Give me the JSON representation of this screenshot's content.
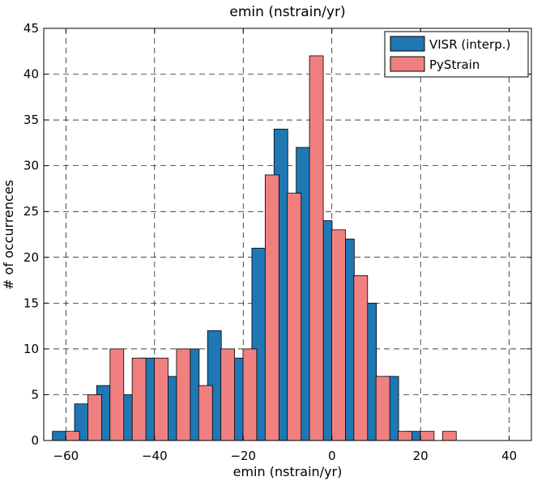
{
  "chart_data": {
    "type": "bar",
    "title": "emin (nstrain/yr)",
    "xlabel": "emin (nstrain/yr)",
    "ylabel": "# of occurrences",
    "xlim": [
      -65,
      45
    ],
    "ylim": [
      0,
      45
    ],
    "xticks": [
      -60,
      -40,
      -20,
      0,
      20,
      40
    ],
    "yticks": [
      0,
      5,
      10,
      15,
      20,
      25,
      30,
      35,
      40,
      45
    ],
    "grid": true,
    "legend": "top-right",
    "series": [
      {
        "name": "VISR (interp.)",
        "color": "#1f77b4",
        "x": [
          -61.5,
          -56.5,
          -51.5,
          -46.5,
          -41.5,
          -36.5,
          -31.5,
          -26.5,
          -21.5,
          -16.5,
          -11.5,
          -6.5,
          -1.5,
          3.5,
          8.5,
          13.5,
          18.5
        ],
        "values": [
          1,
          4,
          6,
          5,
          9,
          7,
          10,
          12,
          9,
          21,
          34,
          32,
          24,
          22,
          15,
          7,
          1
        ]
      },
      {
        "name": "PyStrain",
        "color": "#f08080",
        "x": [
          -58.5,
          -53.5,
          -48.5,
          -43.5,
          -38.5,
          -33.5,
          -28.5,
          -23.5,
          -18.5,
          -13.5,
          -8.5,
          -3.5,
          1.5,
          6.5,
          11.5,
          16.5,
          21.5,
          26.5,
          31.5,
          36.5,
          41.5
        ],
        "values": [
          1,
          5,
          10,
          9,
          9,
          10,
          6,
          10,
          10,
          29,
          27,
          42,
          23,
          18,
          7,
          1,
          1,
          1,
          0,
          0,
          0
        ]
      }
    ]
  }
}
